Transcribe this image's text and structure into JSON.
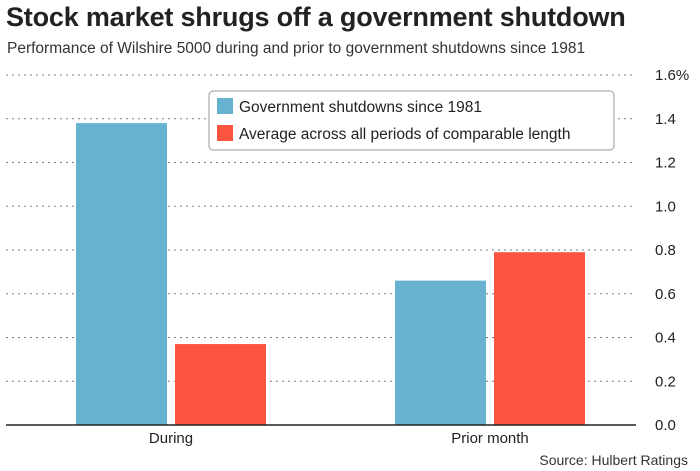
{
  "title": "Stock market shrugs off a government shutdown",
  "subtitle": "Performance of Wilshire 5000 during and prior to government shutdowns since 1981",
  "source": "Source: Hulbert Ratings",
  "colors": {
    "series1": "#66b2d0",
    "series2": "#fb5441",
    "grid": "#7f7f7f",
    "axis": "#222222"
  },
  "chart_data": {
    "type": "bar",
    "title": "Stock market shrugs off a government shutdown",
    "categories": [
      "During",
      "Prior month"
    ],
    "series": [
      {
        "name": "Government shutdowns since 1981",
        "values": [
          1.38,
          0.66
        ]
      },
      {
        "name": "Average across all periods of comparable length",
        "values": [
          0.37,
          0.79
        ]
      }
    ],
    "y_ticks": [
      "0.0",
      "0.2",
      "0.4",
      "0.6",
      "0.8",
      "1.0",
      "1.2",
      "1.4",
      "1.6%"
    ],
    "ylim": [
      0,
      1.6
    ],
    "xlabel": "",
    "ylabel": "",
    "grid": true,
    "legend_position": "top-center"
  }
}
